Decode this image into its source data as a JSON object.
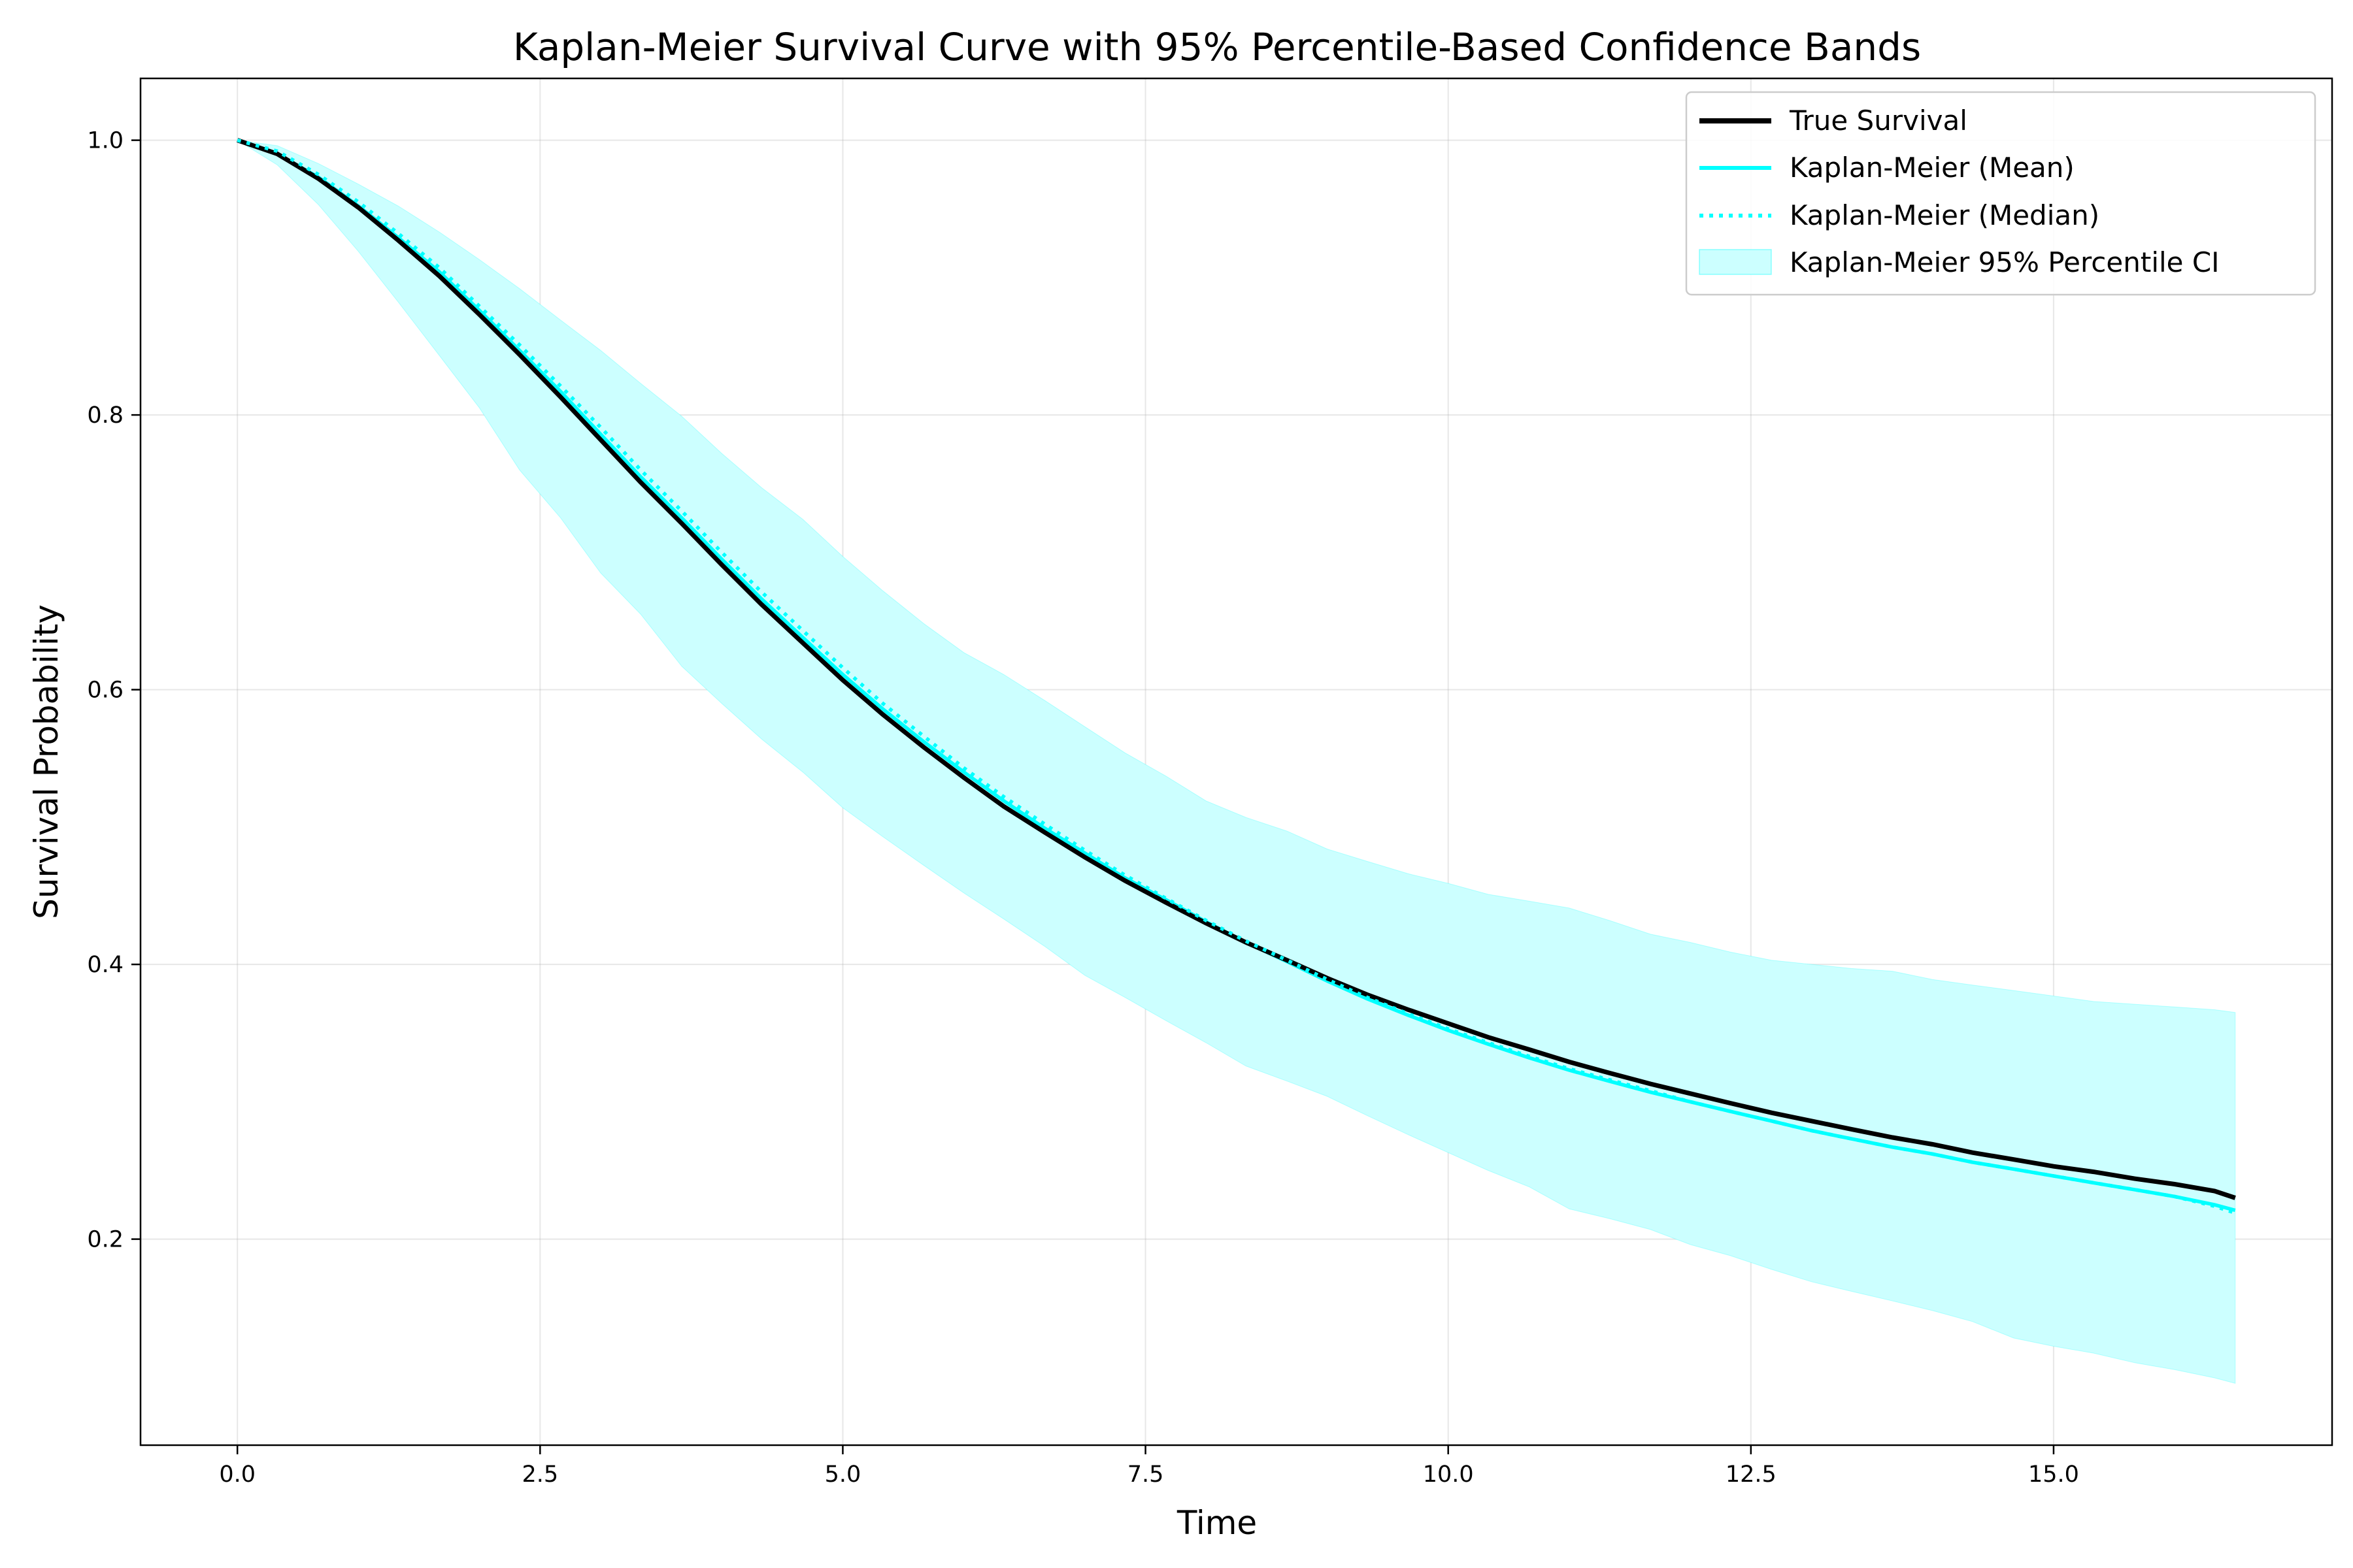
{
  "chart_data": {
    "type": "line",
    "title": "Kaplan-Meier Survival Curve with 95% Percentile-Based Confidence Bands",
    "xlabel": "Time",
    "ylabel": "Survival Probability",
    "xlim": [
      -0.8,
      17.3
    ],
    "ylim": [
      0.05,
      1.045
    ],
    "xticks": [
      0.0,
      2.5,
      5.0,
      7.5,
      10.0,
      12.5,
      15.0
    ],
    "xtick_labels": [
      "0.0",
      "2.5",
      "5.0",
      "7.5",
      "10.0",
      "12.5",
      "15.0"
    ],
    "yticks": [
      0.2,
      0.4,
      0.6,
      0.8,
      1.0
    ],
    "ytick_labels": [
      "0.2",
      "0.4",
      "0.6",
      "0.8",
      "1.0"
    ],
    "grid": true,
    "legend_position": "top-right",
    "colors": {
      "true": "#000000",
      "km": "#00ffff",
      "band": "#ccffff"
    },
    "x": [
      0,
      0.33,
      0.67,
      1.0,
      1.33,
      1.67,
      2.0,
      2.33,
      2.67,
      3.0,
      3.33,
      3.67,
      4.0,
      4.33,
      4.67,
      5.0,
      5.33,
      5.67,
      6.0,
      6.33,
      6.67,
      7.0,
      7.33,
      7.67,
      8.0,
      8.33,
      8.67,
      9.0,
      9.33,
      9.67,
      10.0,
      10.33,
      10.67,
      11.0,
      11.33,
      11.67,
      12.0,
      12.33,
      12.67,
      13.0,
      13.33,
      13.67,
      14.0,
      14.33,
      14.67,
      15.0,
      15.33,
      15.67,
      16.0,
      16.33,
      16.5
    ],
    "series": [
      {
        "name": "True Survival",
        "style": "solid-thick",
        "values": [
          1.0,
          0.99,
          0.972,
          0.951,
          0.927,
          0.901,
          0.873,
          0.844,
          0.813,
          0.782,
          0.751,
          0.721,
          0.691,
          0.662,
          0.634,
          0.607,
          0.582,
          0.558,
          0.536,
          0.515,
          0.496,
          0.478,
          0.461,
          0.445,
          0.43,
          0.416,
          0.403,
          0.39,
          0.378,
          0.367,
          0.357,
          0.347,
          0.338,
          0.329,
          0.321,
          0.313,
          0.306,
          0.299,
          0.292,
          0.286,
          0.28,
          0.274,
          0.269,
          0.263,
          0.258,
          0.253,
          0.249,
          0.244,
          0.24,
          0.235,
          0.23
        ]
      },
      {
        "name": "Kaplan-Meier (Mean)",
        "style": "solid",
        "values": [
          1.0,
          0.99,
          0.973,
          0.952,
          0.929,
          0.904,
          0.876,
          0.847,
          0.817,
          0.786,
          0.755,
          0.725,
          0.695,
          0.666,
          0.638,
          0.611,
          0.586,
          0.562,
          0.54,
          0.519,
          0.499,
          0.481,
          0.463,
          0.447,
          0.431,
          0.416,
          0.402,
          0.388,
          0.375,
          0.363,
          0.352,
          0.342,
          0.332,
          0.323,
          0.315,
          0.307,
          0.3,
          0.293,
          0.286,
          0.279,
          0.273,
          0.267,
          0.262,
          0.256,
          0.251,
          0.246,
          0.241,
          0.236,
          0.231,
          0.225,
          0.221
        ]
      },
      {
        "name": "Kaplan-Meier (Median)",
        "style": "dotted",
        "values": [
          1.0,
          0.992,
          0.975,
          0.955,
          0.932,
          0.907,
          0.879,
          0.851,
          0.821,
          0.791,
          0.76,
          0.73,
          0.7,
          0.671,
          0.643,
          0.616,
          0.59,
          0.566,
          0.543,
          0.522,
          0.502,
          0.483,
          0.465,
          0.448,
          0.432,
          0.417,
          0.403,
          0.389,
          0.376,
          0.364,
          0.353,
          0.343,
          0.333,
          0.324,
          0.316,
          0.308,
          0.3,
          0.293,
          0.286,
          0.279,
          0.273,
          0.267,
          0.262,
          0.256,
          0.251,
          0.246,
          0.241,
          0.236,
          0.231,
          0.224,
          0.219
        ]
      }
    ],
    "band": {
      "name": "Kaplan-Meier 95% Percentile CI",
      "lower": [
        1.0,
        0.982,
        0.953,
        0.919,
        0.882,
        0.843,
        0.805,
        0.76,
        0.725,
        0.685,
        0.655,
        0.617,
        0.59,
        0.564,
        0.54,
        0.514,
        0.493,
        0.472,
        0.452,
        0.433,
        0.413,
        0.392,
        0.376,
        0.359,
        0.343,
        0.326,
        0.315,
        0.304,
        0.29,
        0.276,
        0.263,
        0.25,
        0.238,
        0.222,
        0.215,
        0.207,
        0.196,
        0.188,
        0.178,
        0.169,
        0.162,
        0.155,
        0.148,
        0.14,
        0.128,
        0.122,
        0.117,
        0.11,
        0.105,
        0.099,
        0.095
      ],
      "upper": [
        1.0,
        0.996,
        0.983,
        0.968,
        0.952,
        0.933,
        0.913,
        0.892,
        0.869,
        0.847,
        0.823,
        0.799,
        0.772,
        0.747,
        0.724,
        0.697,
        0.672,
        0.648,
        0.627,
        0.611,
        0.592,
        0.573,
        0.554,
        0.537,
        0.519,
        0.507,
        0.497,
        0.484,
        0.475,
        0.466,
        0.459,
        0.451,
        0.446,
        0.441,
        0.432,
        0.422,
        0.416,
        0.409,
        0.403,
        0.4,
        0.397,
        0.395,
        0.389,
        0.385,
        0.381,
        0.377,
        0.373,
        0.371,
        0.369,
        0.367,
        0.365
      ]
    }
  }
}
